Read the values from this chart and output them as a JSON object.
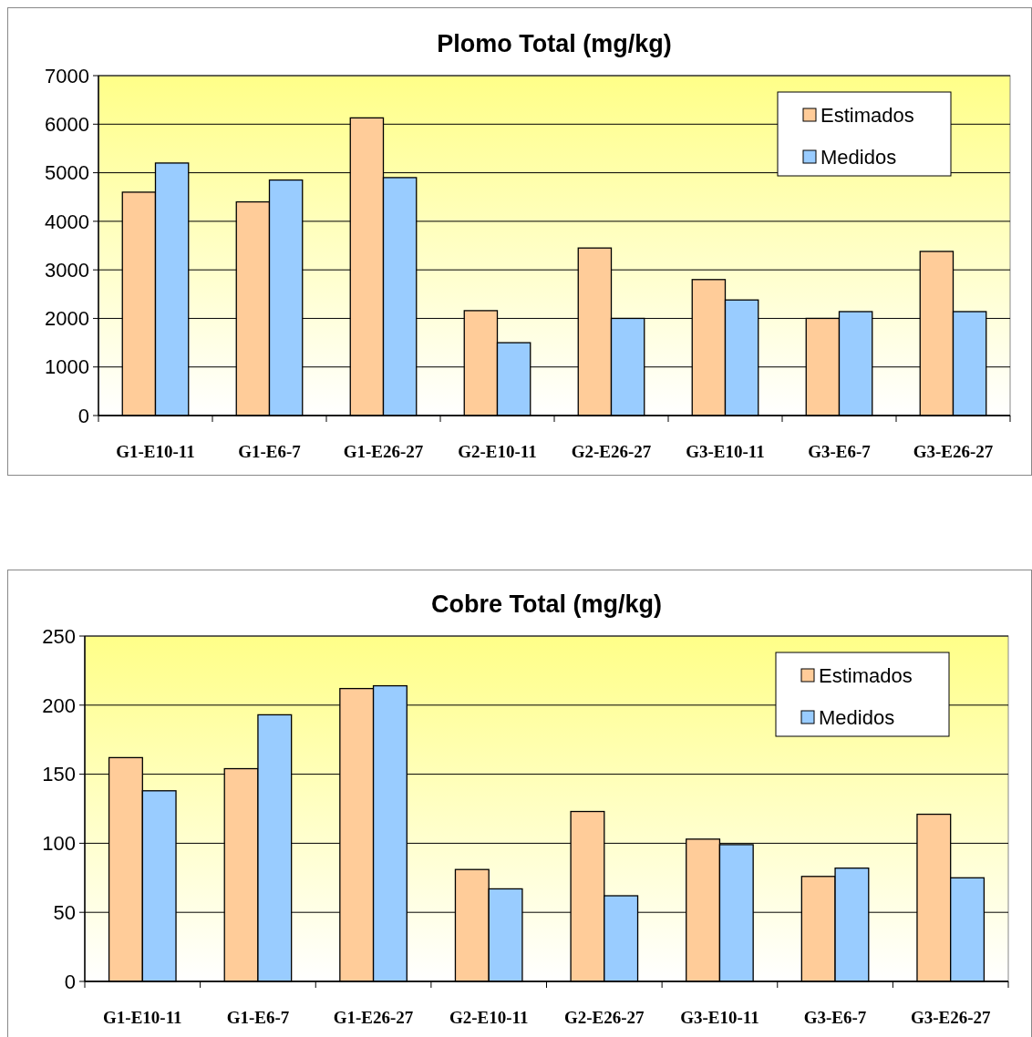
{
  "chart_data": [
    {
      "type": "bar",
      "title": "Plomo Total (mg/kg)",
      "categories": [
        "G1-E10-11",
        "G1-E6-7",
        "G1-E26-27",
        "G2-E10-11",
        "G2-E26-27",
        "G3-E10-11",
        "G3-E6-7",
        "G3-E26-27"
      ],
      "series": [
        {
          "name": "Estimados",
          "color": "#ffcc99",
          "values": [
            4600,
            4400,
            6130,
            2160,
            3450,
            2800,
            2000,
            3380
          ]
        },
        {
          "name": "Medidos",
          "color": "#99ccff",
          "values": [
            5200,
            4850,
            4900,
            1500,
            2000,
            2380,
            2140,
            2140
          ]
        }
      ],
      "ylim": [
        0,
        7000
      ],
      "yticks": [
        0,
        1000,
        2000,
        3000,
        4000,
        5000,
        6000,
        7000
      ],
      "grid": "y",
      "legend": "top right"
    },
    {
      "type": "bar",
      "title": "Cobre Total (mg/kg)",
      "categories": [
        "G1-E10-11",
        "G1-E6-7",
        "G1-E26-27",
        "G2-E10-11",
        "G2-E26-27",
        "G3-E10-11",
        "G3-E6-7",
        "G3-E26-27"
      ],
      "series": [
        {
          "name": "Estimados",
          "color": "#ffcc99",
          "values": [
            162,
            154,
            212,
            81,
            123,
            103,
            76,
            121
          ]
        },
        {
          "name": "Medidos",
          "color": "#99ccff",
          "values": [
            138,
            193,
            214,
            67,
            62,
            99,
            82,
            75
          ]
        }
      ],
      "ylim": [
        0,
        250
      ],
      "yticks": [
        0,
        50,
        100,
        150,
        200,
        250
      ],
      "grid": "y",
      "legend": "top right"
    }
  ]
}
